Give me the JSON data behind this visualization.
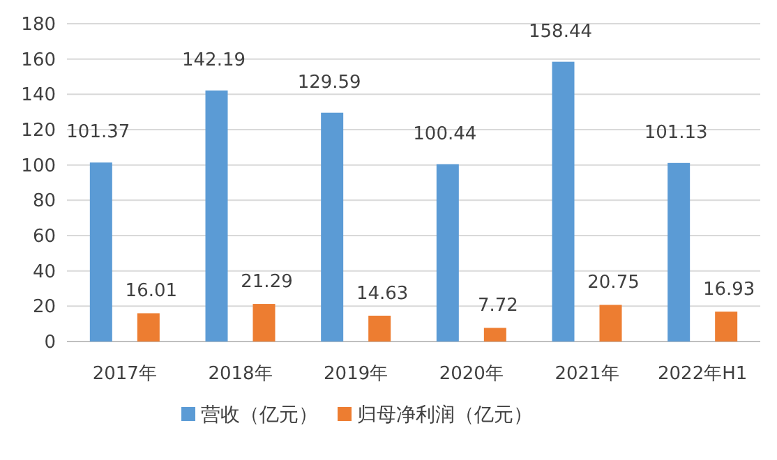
{
  "chart_data": {
    "type": "bar",
    "categories": [
      "2017年",
      "2018年",
      "2019年",
      "2020年",
      "2021年",
      "2022年H1"
    ],
    "series": [
      {
        "name": "营收（亿元）",
        "color": "#5b9bd5",
        "values": [
          101.37,
          142.19,
          129.59,
          100.44,
          158.44,
          101.13
        ]
      },
      {
        "name": "归母净利润（亿元）",
        "color": "#ed7d31",
        "values": [
          16.01,
          21.29,
          14.63,
          7.72,
          20.75,
          16.93
        ]
      }
    ],
    "ylim": [
      0,
      180
    ],
    "yticks": [
      0,
      20,
      40,
      60,
      80,
      100,
      120,
      140,
      160,
      180
    ],
    "grid": "y",
    "legend": "bottom",
    "data_labels": true
  }
}
